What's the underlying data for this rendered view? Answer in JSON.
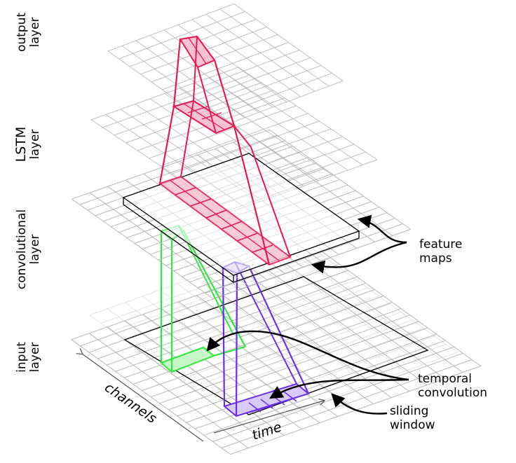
{
  "layers": {
    "output": [
      "output",
      "layer"
    ],
    "lstm": [
      "LSTM",
      "layer"
    ],
    "conv": [
      "convolutional",
      "layer"
    ],
    "input": [
      "input",
      "layer"
    ]
  },
  "annotations": {
    "feature_maps": [
      "feature",
      "maps"
    ],
    "temporal_convolution": [
      "temporal",
      "convolution"
    ],
    "sliding_window": [
      "sliding",
      "window"
    ]
  },
  "axes": {
    "channels": "channels",
    "time": "time"
  },
  "colors": {
    "grid": "#b0b0b0",
    "outline": "#000000",
    "red": "#e8194f",
    "red_fill": "#f7c3d3",
    "green": "#2ee83a",
    "green_fill": "#c6f7c9",
    "purple": "#6b2ff0",
    "purple_fill": "#d8cbfb"
  }
}
